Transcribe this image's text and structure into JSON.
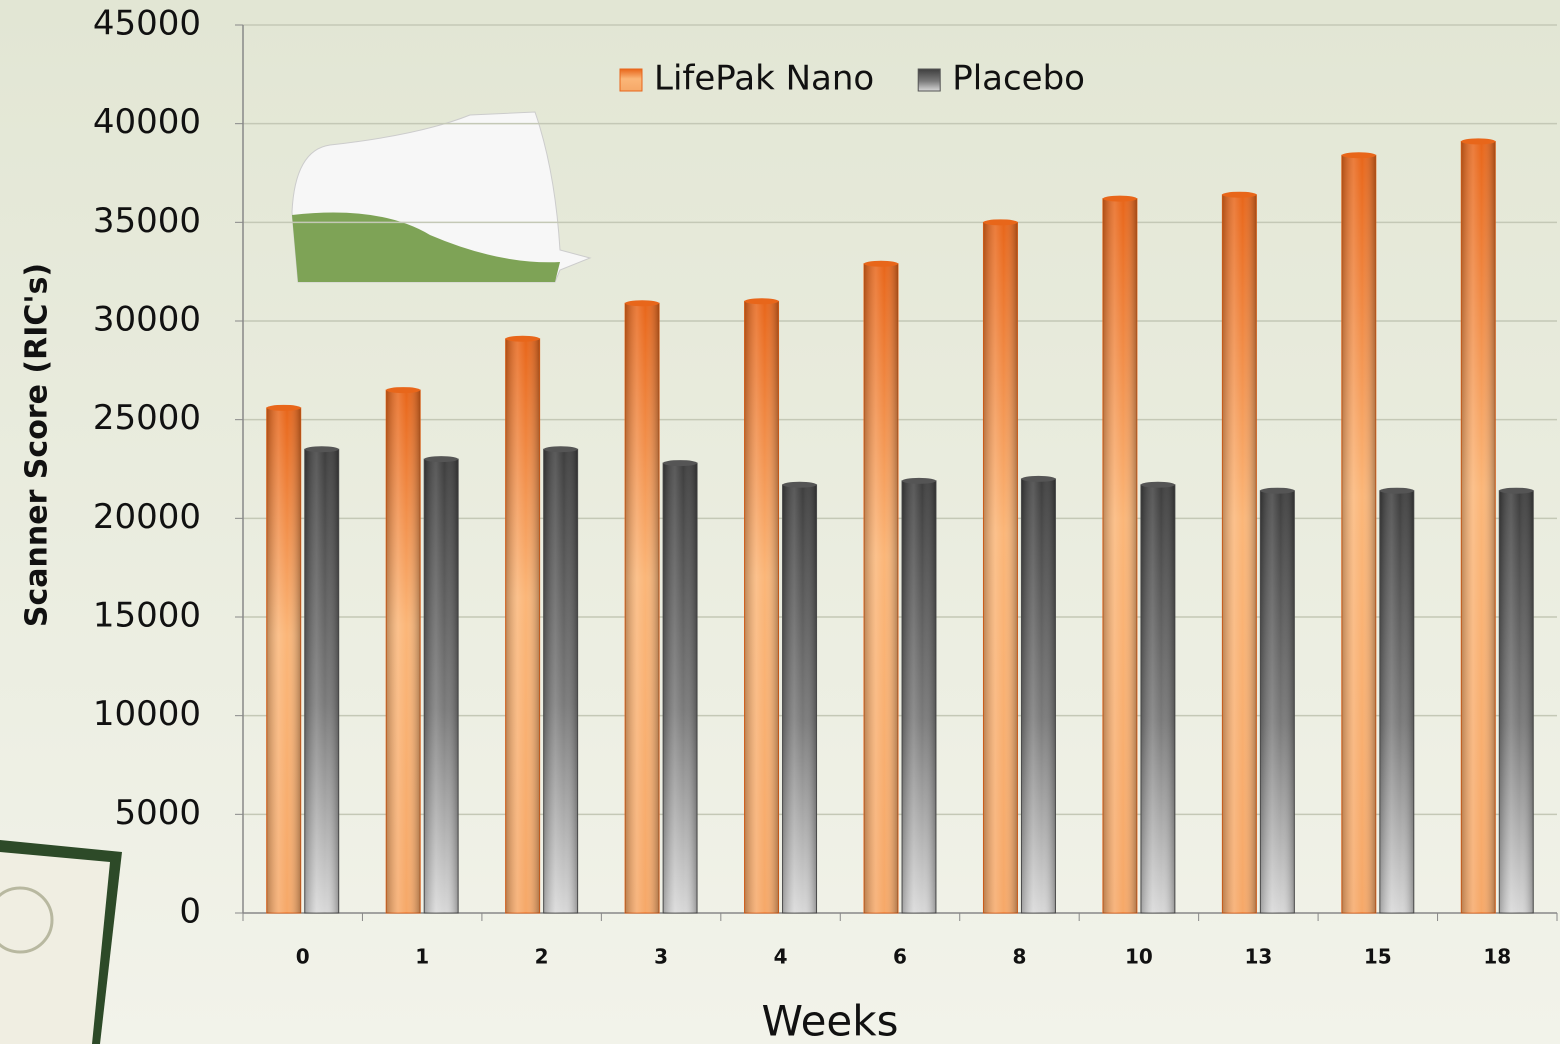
{
  "chart_data": {
    "type": "bar",
    "x_label": "Weeks",
    "y_label": "Scanner Score (RIC's)",
    "categories": [
      "0",
      "1",
      "2",
      "3",
      "4",
      "6",
      "8",
      "10",
      "13",
      "15",
      "18"
    ],
    "series": [
      {
        "name": "LifePak Nano",
        "color": "#e8661a",
        "values": [
          25600,
          26500,
          29100,
          30900,
          31000,
          32900,
          35000,
          36200,
          36400,
          38400,
          39100
        ]
      },
      {
        "name": "Placebo",
        "color": "#555555",
        "values": [
          23500,
          23000,
          23500,
          22800,
          21700,
          21900,
          22000,
          21700,
          21400,
          21400,
          21400
        ]
      }
    ],
    "ylim": [
      0,
      45000
    ],
    "yticks": [
      0,
      5000,
      10000,
      15000,
      20000,
      25000,
      30000,
      35000,
      40000,
      45000
    ],
    "grid": true,
    "legend": "top"
  }
}
